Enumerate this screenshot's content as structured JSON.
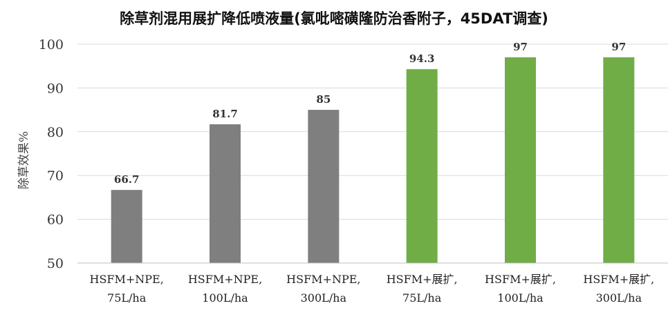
{
  "chart_data": {
    "type": "bar",
    "title": "除草剂混用展扩降低喷液量(氯吡嘧磺隆防治香附子，45DAT调查)",
    "ylabel": "除草效果%",
    "xlabel": "",
    "ylim": [
      50,
      100
    ],
    "yticks": [
      50,
      60,
      70,
      80,
      90,
      100
    ],
    "grid": true,
    "legend": "none",
    "categories": [
      [
        "HSFM+NPE,",
        "75L/ha"
      ],
      [
        "HSFM+NPE,",
        "100L/ha"
      ],
      [
        "HSFM+NPE,",
        "300L/ha"
      ],
      [
        "HSFM+展扩,",
        "75L/ha"
      ],
      [
        "HSFM+展扩,",
        "100L/ha"
      ],
      [
        "HSFM+展扩,",
        "300L/ha"
      ]
    ],
    "values": [
      66.7,
      81.7,
      85,
      94.3,
      97,
      97
    ],
    "data_labels": [
      "66.7",
      "81.7",
      "85",
      "94.3",
      "97",
      "97"
    ],
    "bar_colors": [
      "#7f7f7f",
      "#7f7f7f",
      "#7f7f7f",
      "#70ad47",
      "#70ad47",
      "#70ad47"
    ],
    "grid_color": "#d9d9d9",
    "axis_color": "#bfbfbf"
  }
}
